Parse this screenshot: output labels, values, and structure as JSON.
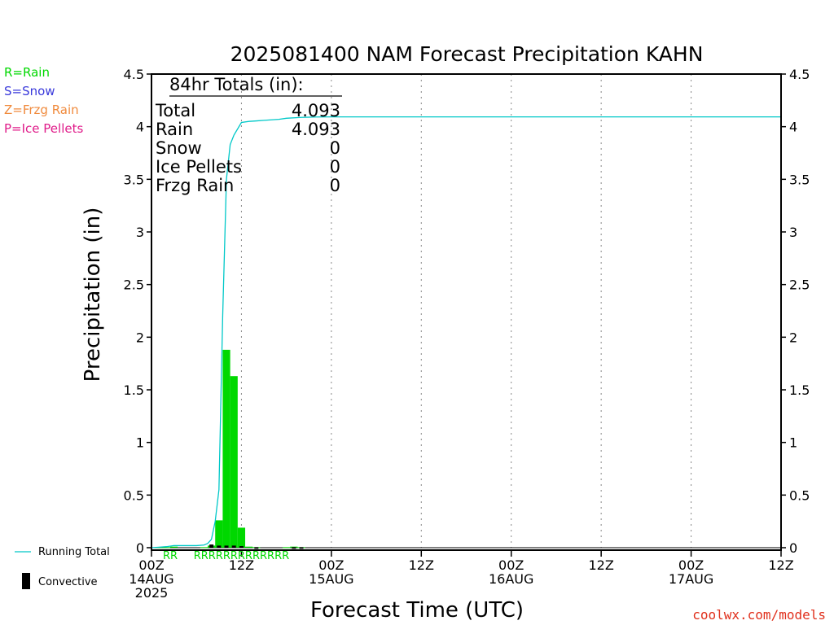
{
  "ptype_legend": [
    {
      "label": "R=Rain",
      "color": "#00d800"
    },
    {
      "label": "S=Snow",
      "color": "#3a3adb"
    },
    {
      "label": "Z=Frzg Rain",
      "color": "#f08a3c"
    },
    {
      "label": "P=Ice Pellets",
      "color": "#e01c8a"
    }
  ],
  "series_legend": {
    "running_total": "Running Total",
    "convective": "Convective"
  },
  "totals": {
    "heading": "84hr Totals (in):",
    "rows": [
      {
        "label": "Total",
        "value": "4.093"
      },
      {
        "label": "Rain",
        "value": "4.093"
      },
      {
        "label": "Snow",
        "value": "0"
      },
      {
        "label": "Ice Pellets",
        "value": "0"
      },
      {
        "label": "Frzg Rain",
        "value": "0"
      }
    ]
  },
  "credit": "coolwx.com/models",
  "chart_data": {
    "type": "bar",
    "title": "2025081400 NAM Forecast Precipitation KAHN",
    "xlabel": "Forecast Time (UTC)",
    "ylabel": "Precipitation (in)",
    "ylim": [
      0,
      4.5
    ],
    "xlim_hours": [
      0,
      84
    ],
    "yticks": [
      "0",
      "0.5",
      "1",
      "1.5",
      "2",
      "2.5",
      "3",
      "3.5",
      "4",
      "4.5"
    ],
    "xticks": [
      {
        "hour": 0,
        "lines": [
          "00Z",
          "14AUG",
          "2025"
        ]
      },
      {
        "hour": 12,
        "lines": [
          "12Z"
        ]
      },
      {
        "hour": 24,
        "lines": [
          "00Z",
          "15AUG"
        ]
      },
      {
        "hour": 36,
        "lines": [
          "12Z"
        ]
      },
      {
        "hour": 48,
        "lines": [
          "00Z",
          "16AUG"
        ]
      },
      {
        "hour": 60,
        "lines": [
          "12Z"
        ]
      },
      {
        "hour": 72,
        "lines": [
          "00Z",
          "17AUG"
        ]
      },
      {
        "hour": 84,
        "lines": [
          "12Z"
        ]
      }
    ],
    "grid": "dotted vertical at each x tick",
    "series": [
      {
        "name": "Running Total",
        "kind": "line",
        "color": "#00c8c8",
        "x": [
          0,
          1,
          2,
          3,
          4,
          5,
          6,
          7,
          7.5,
          8,
          8.5,
          9,
          9.5,
          10,
          10.5,
          11,
          12,
          13,
          14,
          15,
          16,
          17,
          18,
          20,
          22,
          24,
          84
        ],
        "y": [
          0,
          0.005,
          0.01,
          0.02,
          0.02,
          0.02,
          0.02,
          0.025,
          0.04,
          0.08,
          0.25,
          0.55,
          2.2,
          3.5,
          3.83,
          3.92,
          4.04,
          4.05,
          4.055,
          4.06,
          4.065,
          4.07,
          4.08,
          4.088,
          4.092,
          4.093,
          4.093
        ]
      },
      {
        "name": "Precipitation (hourly)",
        "kind": "bar",
        "color": "#00d800",
        "x": [
          1,
          2,
          3,
          4,
          5,
          6,
          7,
          8,
          9,
          10,
          11,
          12,
          13,
          14,
          15,
          16,
          17,
          18,
          19,
          20
        ],
        "y": [
          0.005,
          0.005,
          0.01,
          0.0,
          0.0,
          0.0,
          0.005,
          0.02,
          0.26,
          1.88,
          1.63,
          0.19,
          0.01,
          0.005,
          0.0,
          0.0,
          0.0,
          0.005,
          0.01,
          0.005
        ]
      },
      {
        "name": "Convective",
        "kind": "bar",
        "color": "#000000",
        "x": [
          8,
          9,
          10,
          11,
          12,
          14,
          19,
          20
        ],
        "y": [
          0.03,
          0.02,
          0.02,
          0.02,
          0.015,
          0.005,
          0.005,
          0.005
        ]
      }
    ],
    "ptype_marks": [
      {
        "hour": 2.5,
        "text": "RR"
      },
      {
        "hour": 12,
        "text": "RRRRRRRRRRRRR"
      }
    ]
  }
}
